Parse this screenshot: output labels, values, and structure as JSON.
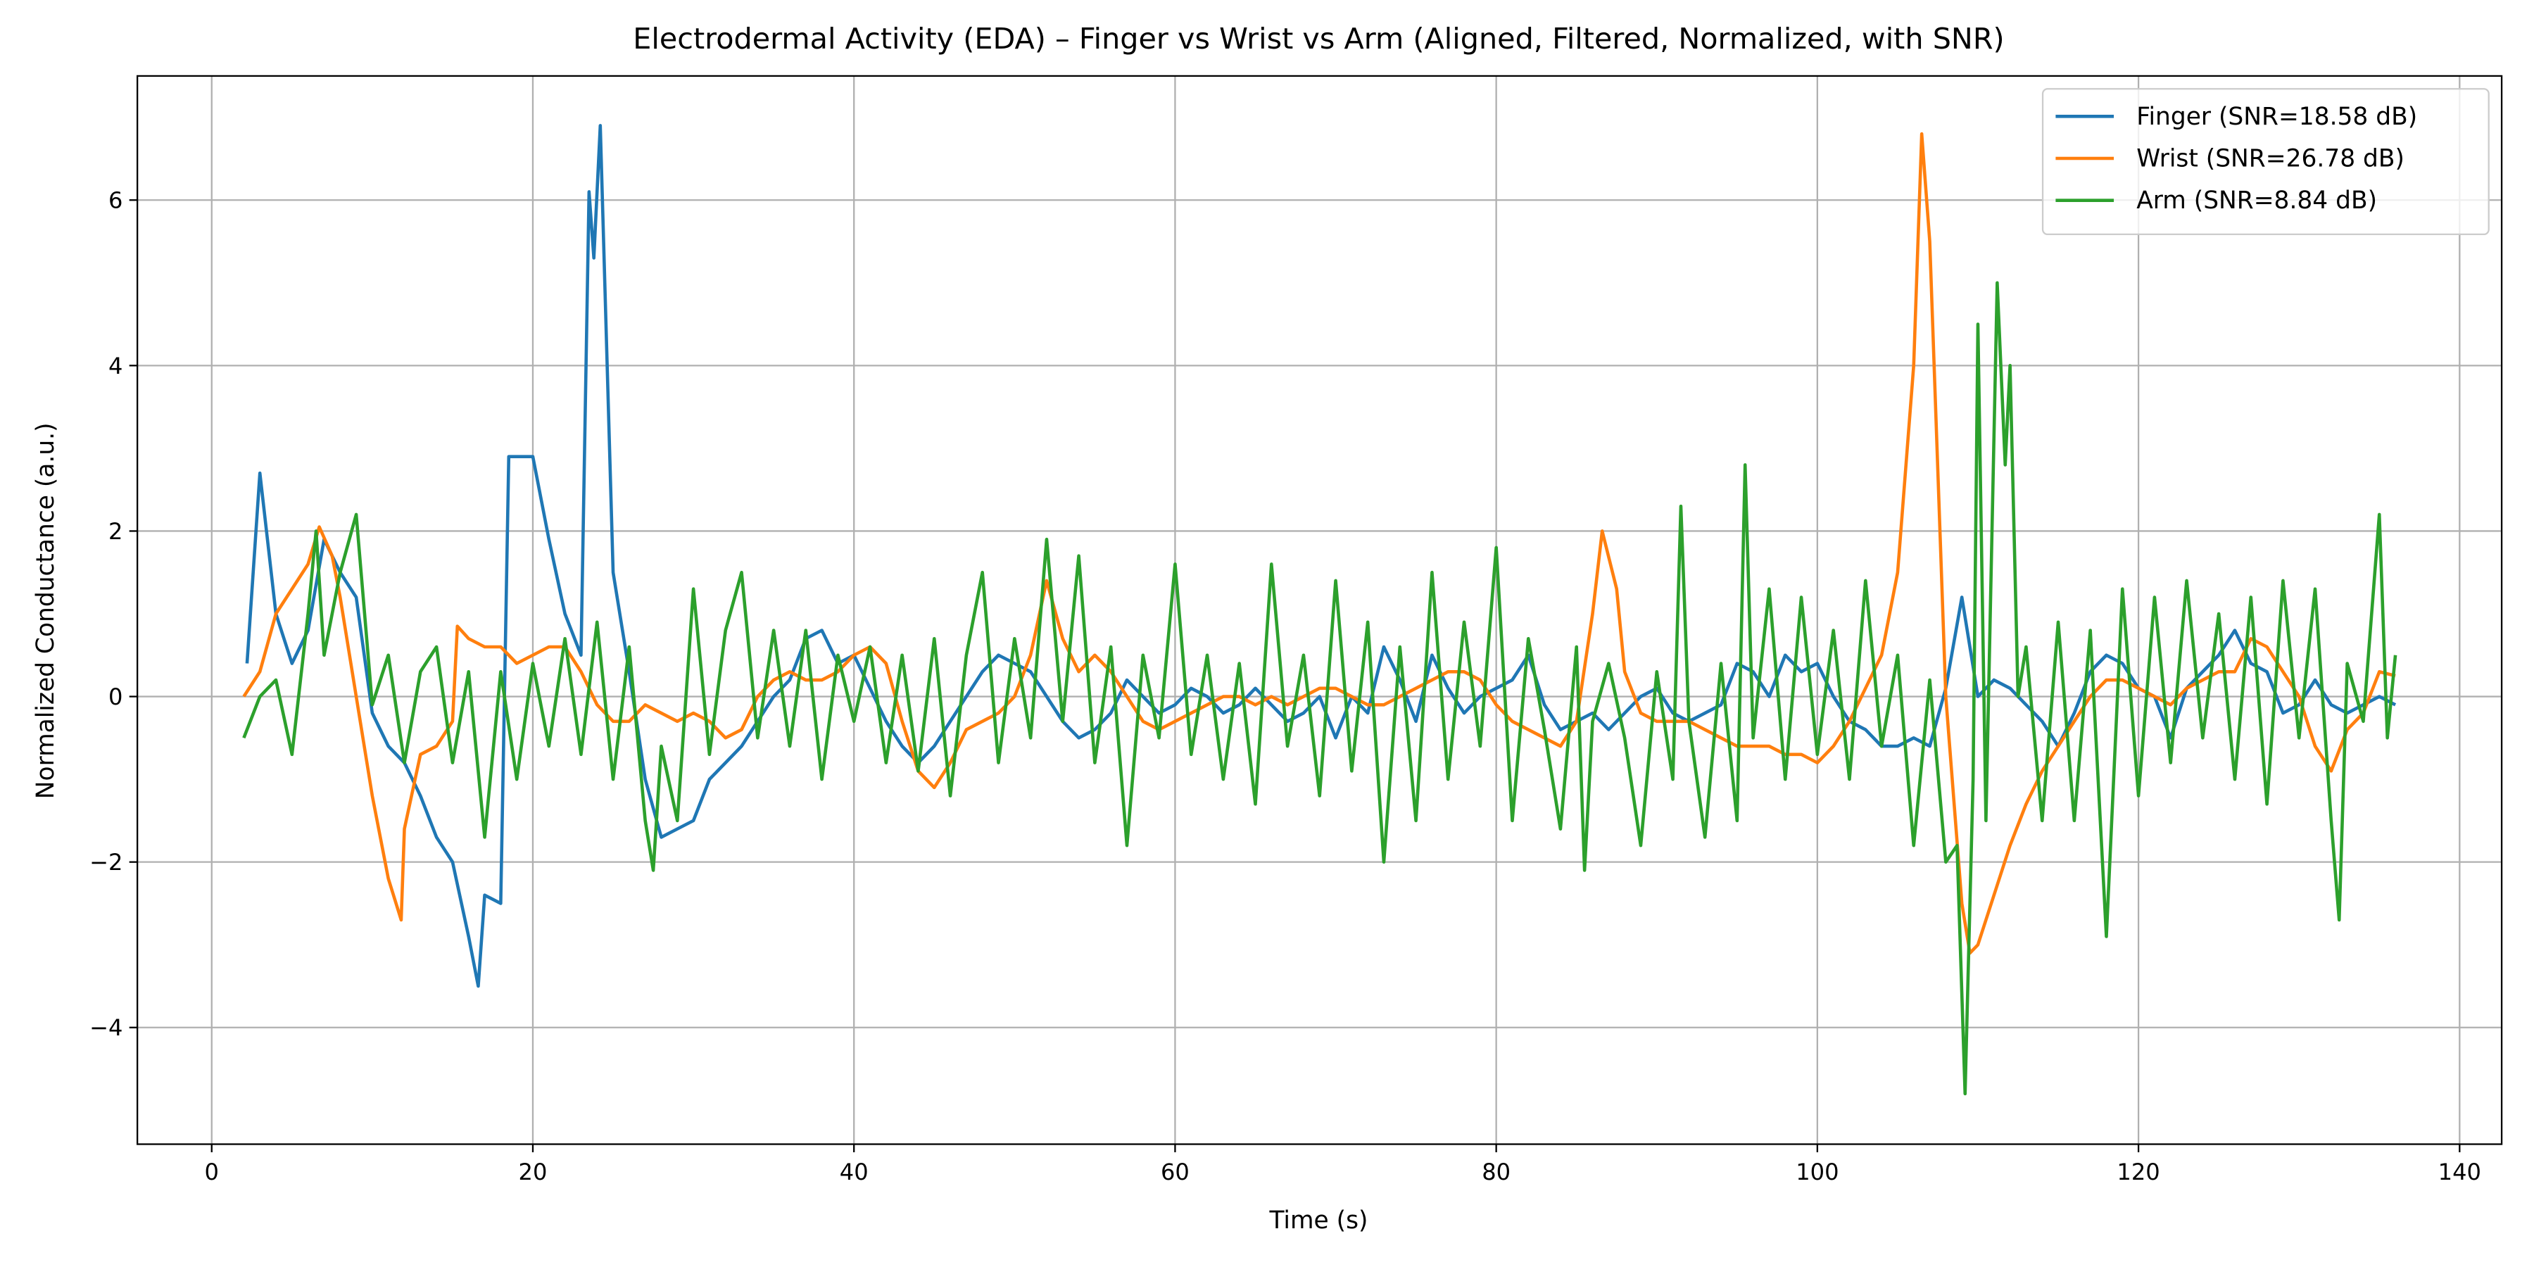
{
  "chart_data": {
    "type": "line",
    "title": "Electrodermal Activity (EDA) – Finger vs Wrist vs Arm (Aligned, Filtered, Normalized, with SNR)",
    "x_label": "Time (s)",
    "y_label": "Normalized Conductance (a.u.)",
    "xlim": [
      -4.63,
      142.62
    ],
    "ylim": [
      -5.41,
      7.5
    ],
    "xticks": [
      0,
      20,
      40,
      60,
      80,
      100,
      120,
      140
    ],
    "yticks": [
      {
        "value": -4,
        "label": "−4"
      },
      {
        "value": -2,
        "label": "−2"
      },
      0,
      2,
      4,
      6
    ],
    "grid": true,
    "legend": "upper right",
    "series": [
      {
        "name": "Finger (SNR=18.58 dB)",
        "color": "#1f77b4",
        "x": [
          2.2,
          3,
          4,
          5,
          6,
          7,
          8,
          9,
          10,
          11,
          12,
          13,
          14,
          15,
          16,
          16.6,
          17,
          18,
          18.5,
          19,
          20,
          21,
          22,
          23,
          23.5,
          23.8,
          24.2,
          25,
          26,
          27,
          28,
          29,
          30,
          31,
          32,
          33,
          34,
          35,
          36,
          37,
          38,
          39,
          40,
          41,
          42,
          43,
          44,
          45,
          46,
          47,
          48,
          49,
          50,
          51,
          52,
          53,
          54,
          55,
          56,
          57,
          58,
          59,
          60,
          61,
          62,
          63,
          64,
          65,
          66,
          67,
          68,
          69,
          70,
          71,
          72,
          73,
          74,
          75,
          76,
          77,
          78,
          79,
          80,
          81,
          82,
          83,
          84,
          85,
          86,
          87,
          88,
          89,
          90,
          91,
          92,
          93,
          94,
          95,
          96,
          97,
          98,
          99,
          100,
          101,
          102,
          103,
          104,
          105,
          106,
          107,
          108,
          109,
          110,
          111,
          112,
          113,
          114,
          115,
          116,
          117,
          118,
          119,
          120,
          121,
          122,
          123,
          124,
          125,
          126,
          127,
          128,
          129,
          130,
          131,
          132,
          133,
          134,
          135,
          136
        ],
        "values": [
          0.4,
          2.7,
          1.0,
          0.4,
          0.8,
          1.9,
          1.5,
          1.2,
          -0.2,
          -0.6,
          -0.8,
          -1.2,
          -1.7,
          -2.0,
          -2.9,
          -3.5,
          -2.4,
          -2.5,
          2.9,
          2.9,
          2.9,
          1.9,
          1.0,
          0.5,
          6.1,
          5.3,
          6.9,
          1.5,
          0.3,
          -1.0,
          -1.7,
          -1.6,
          -1.5,
          -1.0,
          -0.8,
          -0.6,
          -0.3,
          0.0,
          0.2,
          0.7,
          0.8,
          0.4,
          0.5,
          0.1,
          -0.3,
          -0.6,
          -0.8,
          -0.6,
          -0.3,
          0.0,
          0.3,
          0.5,
          0.4,
          0.3,
          0.0,
          -0.3,
          -0.5,
          -0.4,
          -0.2,
          0.2,
          0.0,
          -0.2,
          -0.1,
          0.1,
          0.0,
          -0.2,
          -0.1,
          0.1,
          -0.1,
          -0.3,
          -0.2,
          0.0,
          -0.5,
          0.0,
          -0.2,
          0.6,
          0.2,
          -0.3,
          0.5,
          0.1,
          -0.2,
          0.0,
          0.1,
          0.2,
          0.5,
          -0.1,
          -0.4,
          -0.3,
          -0.2,
          -0.4,
          -0.2,
          0.0,
          0.1,
          -0.2,
          -0.3,
          -0.2,
          -0.1,
          0.4,
          0.3,
          0.0,
          0.5,
          0.3,
          0.4,
          0.0,
          -0.3,
          -0.4,
          -0.6,
          -0.6,
          -0.5,
          -0.6,
          0.1,
          1.2,
          0.0,
          0.2,
          0.1,
          -0.1,
          -0.3,
          -0.6,
          -0.2,
          0.3,
          0.5,
          0.4,
          0.1,
          0.0,
          -0.5,
          0.1,
          0.3,
          0.5,
          0.8,
          0.4,
          0.3,
          -0.2,
          -0.1,
          0.2,
          -0.1,
          -0.2,
          -0.1,
          0.0,
          -0.1
        ]
      },
      {
        "name": "Wrist (SNR=26.78 dB)",
        "color": "#ff7f0e",
        "x": [
          2,
          3,
          4,
          5,
          6,
          6.7,
          7.5,
          8,
          9,
          10,
          11,
          11.8,
          12,
          13,
          14,
          15,
          15.3,
          16,
          17,
          18,
          19,
          20,
          21,
          22,
          23,
          24,
          25,
          26,
          27,
          28,
          29,
          30,
          31,
          32,
          33,
          34,
          35,
          36,
          37,
          38,
          39,
          40,
          41,
          42,
          43,
          44,
          45,
          46,
          47,
          48,
          49,
          50,
          51,
          52,
          53,
          54,
          55,
          56,
          57,
          58,
          59,
          60,
          61,
          62,
          63,
          64,
          65,
          66,
          67,
          68,
          69,
          70,
          71,
          72,
          73,
          74,
          75,
          76,
          77,
          78,
          79,
          80,
          81,
          82,
          83,
          84,
          85,
          86,
          86.6,
          87.5,
          88,
          89,
          90,
          91,
          92,
          93,
          94,
          95,
          96,
          97,
          98,
          99,
          100,
          101,
          102,
          103,
          104,
          105,
          106,
          106.5,
          107,
          108,
          109,
          109.5,
          110,
          111,
          112,
          113,
          114,
          115,
          116,
          117,
          118,
          119,
          120,
          121,
          122,
          123,
          124,
          125,
          126,
          127,
          128,
          129,
          130,
          131,
          132,
          133,
          134,
          135,
          136
        ],
        "values": [
          0.0,
          0.3,
          1.0,
          1.3,
          1.6,
          2.05,
          1.7,
          1.2,
          0.0,
          -1.2,
          -2.2,
          -2.7,
          -1.6,
          -0.7,
          -0.6,
          -0.3,
          0.85,
          0.7,
          0.6,
          0.6,
          0.4,
          0.5,
          0.6,
          0.6,
          0.3,
          -0.1,
          -0.3,
          -0.3,
          -0.1,
          -0.2,
          -0.3,
          -0.2,
          -0.3,
          -0.5,
          -0.4,
          0.0,
          0.2,
          0.3,
          0.2,
          0.2,
          0.3,
          0.5,
          0.6,
          0.4,
          -0.3,
          -0.9,
          -1.1,
          -0.8,
          -0.4,
          -0.3,
          -0.2,
          0.0,
          0.5,
          1.4,
          0.7,
          0.3,
          0.5,
          0.3,
          0.0,
          -0.3,
          -0.4,
          -0.3,
          -0.2,
          -0.1,
          0.0,
          0.0,
          -0.1,
          0.0,
          -0.1,
          0.0,
          0.1,
          0.1,
          0.0,
          -0.1,
          -0.1,
          0.0,
          0.1,
          0.2,
          0.3,
          0.3,
          0.2,
          -0.1,
          -0.3,
          -0.4,
          -0.5,
          -0.6,
          -0.3,
          1.0,
          2.0,
          1.3,
          0.3,
          -0.2,
          -0.3,
          -0.3,
          -0.3,
          -0.4,
          -0.5,
          -0.6,
          -0.6,
          -0.6,
          -0.7,
          -0.7,
          -0.8,
          -0.6,
          -0.3,
          0.1,
          0.5,
          1.5,
          4.0,
          6.8,
          5.5,
          0.0,
          -2.5,
          -3.1,
          -3.0,
          -2.4,
          -1.8,
          -1.3,
          -0.9,
          -0.6,
          -0.3,
          0.0,
          0.2,
          0.2,
          0.1,
          0.0,
          -0.1,
          0.1,
          0.2,
          0.3,
          0.3,
          0.7,
          0.6,
          0.3,
          0.0,
          -0.6,
          -0.9,
          -0.4,
          -0.2,
          0.3,
          0.25
        ]
      },
      {
        "name": "Arm (SNR=8.84 dB)",
        "color": "#2ca02c",
        "x": [
          2,
          3,
          4,
          5,
          6,
          6.5,
          7,
          8,
          9,
          10,
          11,
          12,
          13,
          14,
          15,
          16,
          17,
          18,
          19,
          20,
          21,
          22,
          23,
          24,
          25,
          26,
          27,
          27.5,
          28,
          29,
          30,
          31,
          32,
          33,
          34,
          35,
          36,
          37,
          38,
          39,
          40,
          41,
          42,
          43,
          44,
          45,
          46,
          47,
          48,
          49,
          50,
          51,
          52,
          53,
          54,
          55,
          56,
          57,
          58,
          59,
          60,
          61,
          62,
          63,
          64,
          65,
          66,
          67,
          68,
          69,
          70,
          71,
          72,
          73,
          74,
          75,
          76,
          77,
          78,
          79,
          80,
          81,
          82,
          83,
          84,
          85,
          85.5,
          86,
          87,
          88,
          89,
          90,
          91,
          91.5,
          92,
          93,
          94,
          95,
          95.5,
          96,
          97,
          98,
          99,
          100,
          101,
          102,
          103,
          104,
          105,
          106,
          107,
          108,
          108.7,
          109.2,
          109.7,
          110,
          110.5,
          111.2,
          111.7,
          112,
          112.5,
          113,
          114,
          115,
          116,
          117,
          118,
          119,
          120,
          121,
          122,
          123,
          124,
          125,
          126,
          127,
          128,
          129,
          130,
          131,
          132,
          132.5,
          133,
          134,
          135,
          135.5,
          136
        ],
        "values": [
          -0.5,
          0.0,
          0.2,
          -0.7,
          1.0,
          2.0,
          0.5,
          1.5,
          2.2,
          -0.1,
          0.5,
          -0.8,
          0.3,
          0.6,
          -0.8,
          0.3,
          -1.7,
          0.3,
          -1.0,
          0.4,
          -0.6,
          0.7,
          -0.7,
          0.9,
          -1.0,
          0.6,
          -1.5,
          -2.1,
          -0.6,
          -1.5,
          1.3,
          -0.7,
          0.8,
          1.5,
          -0.5,
          0.8,
          -0.6,
          0.8,
          -1.0,
          0.5,
          -0.3,
          0.6,
          -0.8,
          0.5,
          -0.9,
          0.7,
          -1.2,
          0.5,
          1.5,
          -0.8,
          0.7,
          -0.5,
          1.9,
          -0.3,
          1.7,
          -0.8,
          0.6,
          -1.8,
          0.5,
          -0.5,
          1.6,
          -0.7,
          0.5,
          -1.0,
          0.4,
          -1.3,
          1.6,
          -0.6,
          0.5,
          -1.2,
          1.4,
          -0.9,
          0.9,
          -2.0,
          0.6,
          -1.5,
          1.5,
          -1.0,
          0.9,
          -0.6,
          1.8,
          -1.5,
          0.7,
          -0.4,
          -1.6,
          0.6,
          -2.1,
          -0.3,
          0.4,
          -0.5,
          -1.8,
          0.3,
          -1.0,
          2.3,
          -0.3,
          -1.7,
          0.4,
          -1.5,
          2.8,
          -0.5,
          1.3,
          -1.0,
          1.2,
          -0.7,
          0.8,
          -1.0,
          1.4,
          -0.6,
          0.5,
          -1.8,
          0.2,
          -2.0,
          -1.8,
          -4.8,
          -1.0,
          4.5,
          -1.5,
          5.0,
          2.8,
          4.0,
          0.0,
          0.6,
          -1.5,
          0.9,
          -1.5,
          0.8,
          -2.9,
          1.3,
          -1.2,
          1.2,
          -0.8,
          1.4,
          -0.5,
          1.0,
          -1.0,
          1.2,
          -1.3,
          1.4,
          -0.5,
          1.3,
          -1.5,
          -2.7,
          0.4,
          -0.3,
          2.2,
          -0.5,
          0.5
        ]
      }
    ]
  }
}
